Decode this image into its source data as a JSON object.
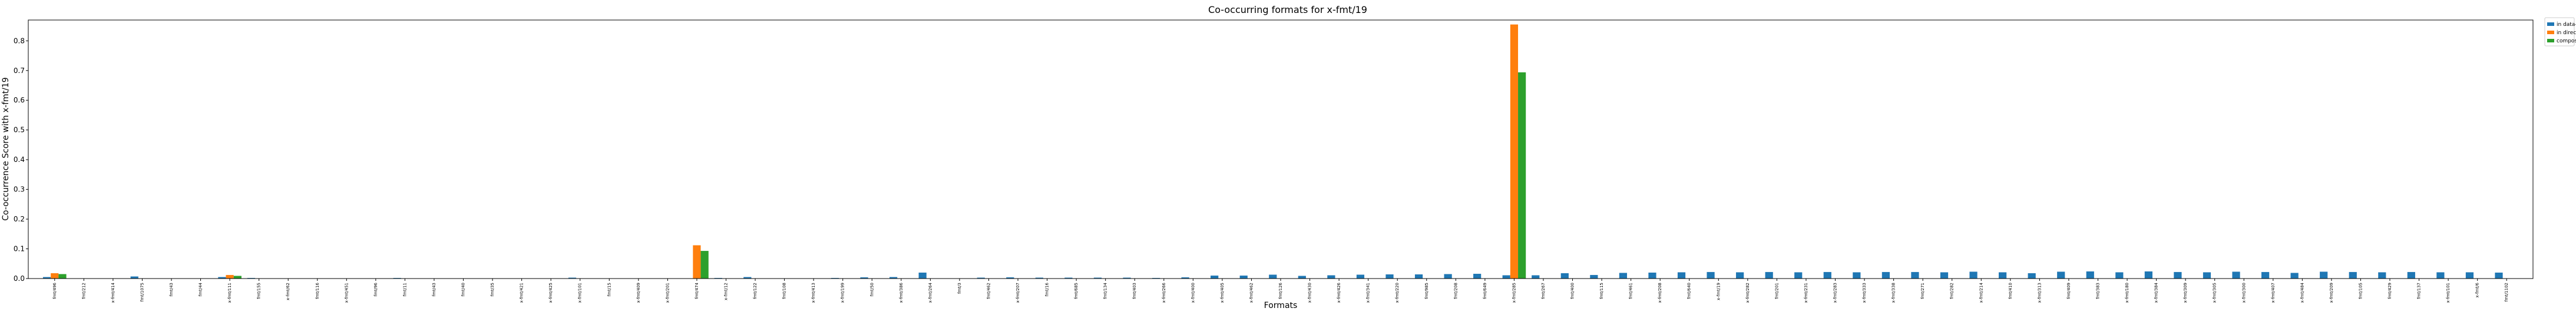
{
  "chart_data": {
    "type": "bar",
    "title": "Co-occurring formats for x-fmt/19",
    "xlabel": "Formats",
    "ylabel": "Co-occurrence Score with x-fmt/19",
    "ylim": [
      0,
      0.87
    ],
    "yticks": [
      "0.0",
      "0.1",
      "0.2",
      "0.3",
      "0.4",
      "0.5",
      "0.6",
      "0.7",
      "0.8"
    ],
    "grid": false,
    "legend_position": "upper-right-outside",
    "categories": [
      "fmt/496",
      "fmt/212",
      "x-fmt/414",
      "fmt/1075",
      "fmt/43",
      "fmt/44",
      "x-fmt/111",
      "fmt/155",
      "x-fmt/62",
      "fmt/116",
      "x-fmt/451",
      "fmt/96",
      "fmt/11",
      "fmt/43",
      "fmt/40",
      "fmt/35",
      "x-fmt/421",
      "x-fmt/425",
      "x-fmt/101",
      "fmt/15",
      "x-fmt/409",
      "x-fmt/201",
      "fmt/474",
      "x-fmt/12",
      "fmt/122",
      "fmt/108",
      "x-fmt/413",
      "x-fmt/199",
      "fmt/50",
      "x-fmt/386",
      "x-fmt/264",
      "fmt/3",
      "fmt/462",
      "x-fmt/207",
      "fmt/16",
      "fmt/685",
      "fmt/134",
      "fmt/403",
      "x-fmt/266",
      "x-fmt/400",
      "x-fmt/405",
      "x-fmt/462",
      "fmt/126",
      "x-fmt/430",
      "x-fmt/426",
      "x-fmt/341",
      "x-fmt/220",
      "fmt/985",
      "fmt/208",
      "fmt/649",
      "x-fmt/285",
      "fmt/267",
      "fmt/400",
      "fmt/115",
      "fmt/461",
      "x-fmt/208",
      "fmt/640",
      "x-fmt/19",
      "x-fmt/282",
      "fmt/201",
      "x-fmt/231",
      "x-fmt/283",
      "x-fmt/333",
      "x-fmt/338",
      "fmt/271",
      "fmt/282",
      "x-fmt/214",
      "fmt/410",
      "x-fmt/313",
      "fmt/409",
      "fmt/383",
      "x-fmt/180",
      "x-fmt/384",
      "x-fmt/309",
      "x-fmt/305",
      "x-fmt/300",
      "x-fmt/407",
      "x-fmt/484",
      "x-fmt/209",
      "fmt/105",
      "fmt/429",
      "fmt/137",
      "x-fmt/101",
      "x-fmt/6",
      "fmt/1102"
    ],
    "series": [
      {
        "name": "in data-objects",
        "color": "#1f77b4",
        "values": [
          0.005,
          0.001,
          0.001,
          0.007,
          0,
          0,
          0.005,
          0.002,
          0,
          0,
          0,
          0,
          0.002,
          0,
          0.001,
          0.001,
          0,
          0,
          0.003,
          0,
          0,
          0.001,
          0.001,
          0.002,
          0.005,
          0,
          0,
          0.002,
          0.004,
          0.005,
          0.02,
          0,
          0.003,
          0.004,
          0.003,
          0.003,
          0.003,
          0.003,
          0.002,
          0.004,
          0.01,
          0.01,
          0.013,
          0.009,
          0.011,
          0.013,
          0.014,
          0.014,
          0.015,
          0.016,
          0.011,
          0.011,
          0.018,
          0.012,
          0.019,
          0.02,
          0.021,
          0.022,
          0.021,
          0.022,
          0.021,
          0.022,
          0.021,
          0.022,
          0.022,
          0.021,
          0.023,
          0.021,
          0.018,
          0.023,
          0.024,
          0.021,
          0.024,
          0.022,
          0.021,
          0.023,
          0.022,
          0.019,
          0.023,
          0.022,
          0.021,
          0.022,
          0.021,
          0.021,
          0.02
        ]
      },
      {
        "name": "in directories",
        "color": "#ff7f0e",
        "values": [
          0.018,
          0,
          0,
          0,
          0,
          0,
          0.012,
          0,
          0,
          0,
          0,
          0,
          0,
          0,
          0,
          0,
          0,
          0,
          0,
          0,
          0,
          0,
          0.112,
          0,
          0,
          0,
          0,
          0,
          0,
          0,
          0,
          0,
          0,
          0,
          0,
          0,
          0,
          0,
          0,
          0,
          0,
          0,
          0,
          0,
          0,
          0,
          0,
          0,
          0,
          0,
          0.855,
          0,
          0,
          0,
          0,
          0,
          0,
          0,
          0,
          0,
          0,
          0,
          0,
          0,
          0,
          0,
          0,
          0,
          0,
          0,
          0,
          0,
          0,
          0,
          0,
          0,
          0,
          0,
          0,
          0,
          0,
          0,
          0,
          0,
          0
        ]
      },
      {
        "name": "composed",
        "color": "#2ca02c",
        "values": [
          0.015,
          0,
          0,
          0,
          0,
          0,
          0.009,
          0,
          0,
          0,
          0,
          0,
          0,
          0,
          0,
          0,
          0,
          0,
          0,
          0,
          0,
          0,
          0.093,
          0,
          0,
          0,
          0,
          0,
          0,
          0,
          0,
          0,
          0,
          0,
          0,
          0,
          0,
          0,
          0,
          0,
          0,
          0,
          0,
          0,
          0,
          0,
          0,
          0,
          0,
          0,
          0.694,
          0,
          0,
          0,
          0,
          0,
          0,
          0,
          0,
          0,
          0,
          0,
          0,
          0,
          0,
          0,
          0,
          0,
          0,
          0,
          0,
          0,
          0,
          0,
          0,
          0,
          0,
          0,
          0,
          0,
          0,
          0,
          0,
          0,
          0
        ]
      }
    ]
  }
}
